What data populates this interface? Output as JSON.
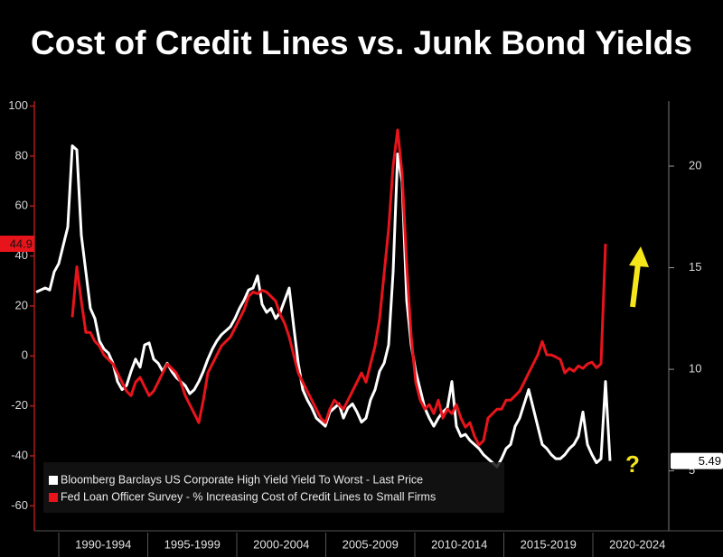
{
  "chart_data": {
    "type": "line",
    "title": "Cost of Credit Lines vs. Junk Bond Yields",
    "categories": [
      "1990-1994",
      "1995-1999",
      "2000-2004",
      "2005-2009",
      "2010-2014",
      "2015-2019",
      "2020-2024"
    ],
    "xlim": [
      1988.75,
      2023.75
    ],
    "ylim": [
      -70,
      102
    ],
    "yticks": [
      -60,
      -40,
      -20,
      0,
      20,
      40,
      60,
      80,
      100
    ],
    "y2lim": [
      2.05,
      23.2
    ],
    "y2ticks": [
      5,
      10,
      15,
      20
    ],
    "legend": "lower left",
    "annotations": [
      {
        "text": "?",
        "color": "#f5e61a"
      }
    ],
    "x": [
      1988.75,
      1989,
      1989.25,
      1989.5,
      1989.75,
      1990,
      1990.25,
      1990.5,
      1990.75,
      1991,
      1991.25,
      1991.5,
      1991.75,
      1992,
      1992.25,
      1992.5,
      1992.75,
      1993,
      1993.25,
      1993.5,
      1993.75,
      1994,
      1994.25,
      1994.5,
      1994.75,
      1995,
      1995.25,
      1995.5,
      1995.75,
      1996,
      1996.25,
      1996.5,
      1996.75,
      1997,
      1997.25,
      1997.5,
      1997.75,
      1998,
      1998.25,
      1998.5,
      1998.75,
      1999,
      1999.25,
      1999.5,
      1999.75,
      2000,
      2000.25,
      2000.5,
      2000.75,
      2001,
      2001.25,
      2001.5,
      2001.75,
      2002,
      2002.25,
      2002.5,
      2002.75,
      2003,
      2003.25,
      2003.5,
      2003.75,
      2004,
      2004.25,
      2004.5,
      2004.75,
      2005,
      2005.25,
      2005.5,
      2005.75,
      2006,
      2006.25,
      2006.5,
      2006.75,
      2007,
      2007.25,
      2007.5,
      2007.75,
      2008,
      2008.25,
      2008.5,
      2008.75,
      2009,
      2009.25,
      2009.5,
      2009.75,
      2010,
      2010.25,
      2010.5,
      2010.75,
      2011,
      2011.25,
      2011.5,
      2011.75,
      2012,
      2012.25,
      2012.5,
      2012.75,
      2013,
      2013.25,
      2013.5,
      2013.75,
      2014,
      2014.25,
      2014.5,
      2014.75,
      2015,
      2015.25,
      2015.5,
      2015.75,
      2016,
      2016.25,
      2016.5,
      2016.75,
      2017,
      2017.25,
      2017.5,
      2017.75,
      2018,
      2018.25,
      2018.5,
      2018.75,
      2019,
      2019.25,
      2019.5,
      2019.75,
      2020,
      2020.25,
      2020.5
    ],
    "series": [
      {
        "name": "Bloomberg Barclays US Corporate High Yield Yield To Worst - Last Price",
        "color": "#ffffff",
        "axis": "y2",
        "end_label": "5.49",
        "values": [
          13.8,
          13.9,
          14.0,
          13.9,
          14.8,
          15.2,
          16.1,
          17.0,
          21.0,
          20.8,
          16.6,
          14.8,
          13.0,
          12.5,
          11.4,
          11.0,
          10.8,
          10.3,
          9.4,
          9.0,
          9.2,
          9.9,
          10.5,
          10.1,
          11.2,
          11.3,
          10.5,
          10.3,
          9.9,
          10.3,
          9.9,
          9.6,
          9.4,
          9.2,
          8.8,
          9.0,
          9.4,
          9.9,
          10.5,
          11.0,
          11.4,
          11.7,
          11.9,
          12.1,
          12.5,
          13.0,
          13.4,
          13.9,
          14.0,
          14.6,
          13.2,
          12.8,
          13.0,
          12.5,
          12.8,
          13.4,
          14.0,
          12.1,
          10.3,
          9.0,
          8.5,
          8.1,
          7.6,
          7.4,
          7.2,
          7.9,
          8.1,
          8.3,
          7.6,
          8.1,
          8.3,
          7.9,
          7.4,
          7.6,
          8.5,
          9.0,
          9.9,
          10.3,
          11.2,
          14.8,
          20.6,
          19.2,
          13.4,
          11.2,
          9.9,
          9.0,
          8.1,
          7.6,
          7.2,
          7.6,
          7.9,
          8.1,
          9.4,
          7.2,
          6.7,
          6.8,
          6.5,
          6.3,
          6.1,
          5.8,
          5.6,
          5.4,
          5.2,
          5.6,
          6.1,
          6.3,
          7.2,
          7.6,
          8.3,
          9.0,
          8.1,
          7.2,
          6.3,
          6.1,
          5.8,
          5.6,
          5.6,
          5.8,
          6.1,
          6.3,
          6.7,
          7.9,
          6.3,
          5.8,
          5.4,
          5.6,
          9.4,
          5.49
        ]
      },
      {
        "name": "Fed Loan Officer Survey - % Increasing Cost of Credit Lines to Small Firms",
        "color": "#e8141c",
        "axis": "y",
        "end_label": "44.9",
        "values": [
          null,
          null,
          null,
          null,
          null,
          null,
          null,
          null,
          15.5,
          35.7,
          22.0,
          9.4,
          9.4,
          5.8,
          4.0,
          0.4,
          -1.4,
          -3.2,
          -6.8,
          -10.5,
          -14.1,
          -15.9,
          -10.5,
          -8.6,
          -12.3,
          -15.9,
          -14.1,
          -10.5,
          -6.8,
          -3.2,
          -5.0,
          -6.8,
          -10.5,
          -15.9,
          -19.5,
          -23.1,
          -26.7,
          -17.7,
          -6.8,
          -3.2,
          0.4,
          4.0,
          5.8,
          7.6,
          11.2,
          14.8,
          18.4,
          23.8,
          25.6,
          24.9,
          26.3,
          25.6,
          23.8,
          22.0,
          16.6,
          13.0,
          7.6,
          0.4,
          -6.8,
          -10.5,
          -14.1,
          -17.7,
          -21.3,
          -24.9,
          -26.7,
          -21.3,
          -17.7,
          -19.5,
          -21.3,
          -17.7,
          -14.1,
          -10.5,
          -6.8,
          -10.5,
          -3.2,
          4.0,
          14.8,
          32.8,
          50.8,
          76.0,
          90.5,
          72.4,
          36.4,
          7.6,
          -10.5,
          -17.7,
          -21.3,
          -19.5,
          -23.1,
          -17.7,
          -24.9,
          -21.3,
          -23.1,
          -19.5,
          -24.9,
          -28.5,
          -26.7,
          -32.1,
          -35.7,
          -33.9,
          -24.9,
          -23.1,
          -21.3,
          -21.3,
          -17.7,
          -17.7,
          -15.9,
          -14.1,
          -10.5,
          -6.8,
          -3.2,
          0.4,
          5.8,
          0.4,
          0.4,
          -0.4,
          -1.4,
          -6.8,
          -5.0,
          -6.1,
          -4.0,
          -5.0,
          -3.2,
          -2.5,
          -4.7,
          -3.2,
          44.9,
          null
        ]
      }
    ]
  }
}
